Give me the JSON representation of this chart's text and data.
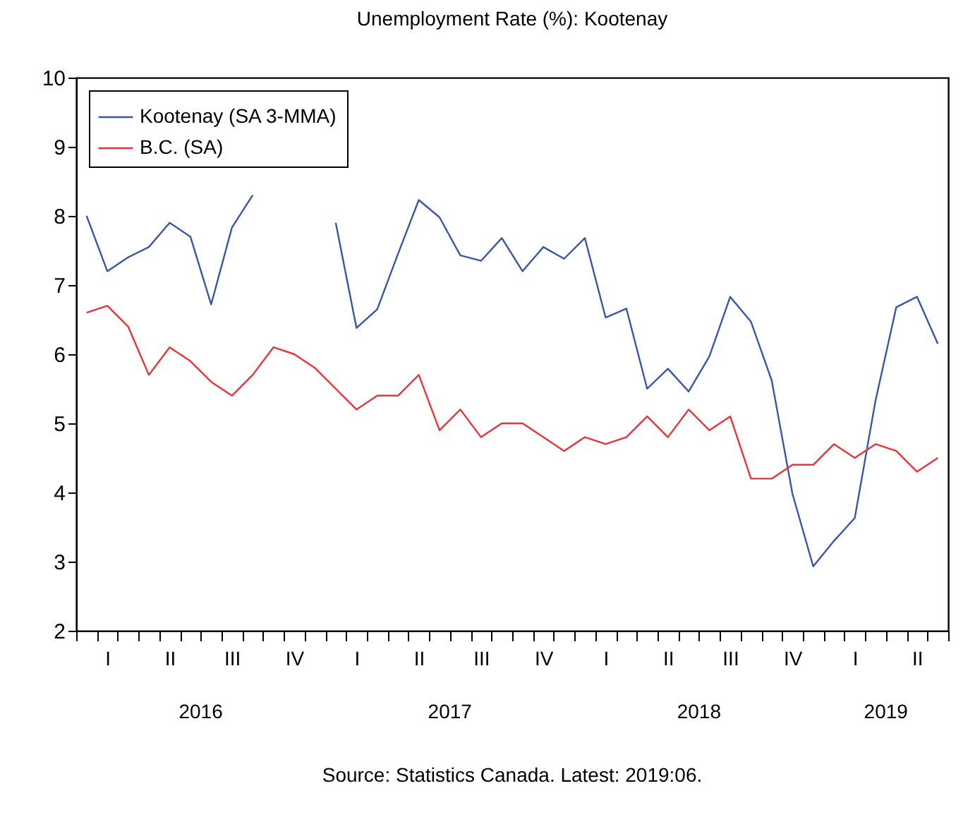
{
  "chart_data": {
    "type": "line",
    "title": "Unemployment Rate (%): Kootenay",
    "categories": [
      null,
      "I",
      null,
      null,
      "II",
      null,
      null,
      "III",
      null,
      null,
      "IV",
      null,
      null,
      "I",
      null,
      null,
      "II",
      null,
      null,
      "III",
      null,
      null,
      "IV",
      null,
      null,
      "I",
      null,
      null,
      "II",
      null,
      null,
      "III",
      null,
      null,
      "IV",
      null,
      null,
      "I",
      null,
      null,
      "II",
      null
    ],
    "series": [
      {
        "name": "Kootenay (SA 3-MMA)",
        "color": "#3a56a8",
        "values": [
          8.0,
          7.2,
          7.4,
          7.55,
          7.9,
          7.7,
          6.72,
          7.83,
          8.3,
          null,
          null,
          null,
          7.9,
          6.38,
          6.65,
          7.45,
          8.23,
          7.98,
          7.43,
          7.35,
          7.68,
          7.2,
          7.55,
          7.38,
          7.68,
          6.53,
          6.66,
          5.5,
          5.79,
          5.46,
          5.97,
          6.83,
          6.47,
          5.62,
          3.98,
          2.93,
          3.3,
          3.63,
          5.33,
          6.68,
          6.83,
          6.15
        ]
      },
      {
        "name": "B.C. (SA)",
        "color": "#e8343a",
        "values": [
          6.6,
          6.7,
          6.4,
          5.7,
          6.1,
          5.9,
          5.6,
          5.4,
          5.7,
          6.1,
          6.0,
          5.8,
          5.5,
          5.2,
          5.4,
          5.4,
          5.7,
          4.9,
          5.2,
          4.8,
          5.0,
          5.0,
          4.8,
          4.6,
          4.8,
          4.7,
          4.8,
          5.1,
          4.8,
          5.2,
          4.9,
          5.1,
          4.2,
          4.2,
          4.4,
          4.4,
          4.7,
          4.5,
          4.7,
          4.6,
          4.3,
          4.5
        ]
      }
    ],
    "ylim": [
      2,
      10
    ],
    "yticks": [
      2,
      3,
      4,
      5,
      6,
      7,
      8,
      9,
      10
    ],
    "grid": false,
    "legend": "top left",
    "line_style": "solid",
    "marker": "none",
    "annotations": [
      "2016",
      "2017",
      "2018",
      "2019",
      "Source: Statistics Canada. Latest: 2019:06."
    ]
  }
}
